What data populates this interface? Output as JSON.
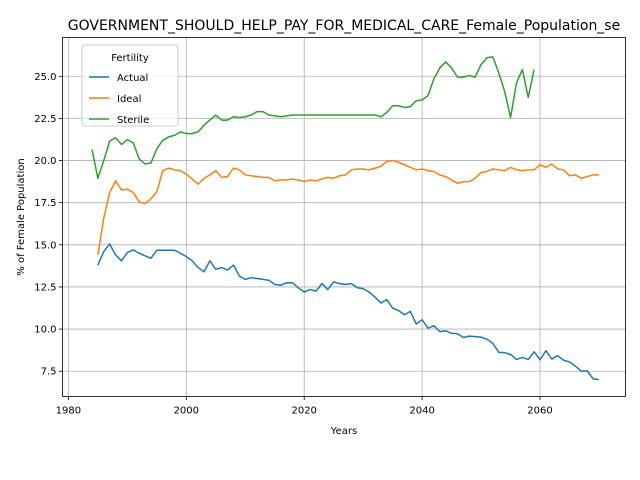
{
  "chart_data": {
    "type": "line",
    "title": "GOVERNMENT_SHOULD_HELP_PAY_FOR_MEDICAL_CARE_Female_Population_se",
    "xlabel": "Years",
    "ylabel": "% of Female Population",
    "xlim": [
      1979,
      2074.5
    ],
    "ylim": [
      6.0,
      27.3
    ],
    "xticks": [
      1980,
      2000,
      2020,
      2040,
      2060
    ],
    "yticks": [
      7.5,
      10.0,
      12.5,
      15.0,
      17.5,
      20.0,
      22.5,
      25.0
    ],
    "xtick_labels": [
      "1980",
      "2000",
      "2020",
      "2040",
      "2060"
    ],
    "ytick_labels": [
      "7.5",
      "10.0",
      "12.5",
      "15.0",
      "17.5",
      "20.0",
      "22.5",
      "25.0"
    ],
    "grid": true,
    "legend": {
      "title": "Fertility",
      "position": "upper-left"
    },
    "series": [
      {
        "name": "Actual",
        "color": "#1f77b4",
        "x": [
          1985,
          1986,
          1987,
          1988,
          1989,
          1990,
          1991,
          1992,
          1993,
          1994,
          1995,
          1996,
          1997,
          1998,
          1999,
          2000,
          2001,
          2002,
          2003,
          2004,
          2005,
          2006,
          2007,
          2008,
          2009,
          2010,
          2011,
          2012,
          2013,
          2014,
          2015,
          2016,
          2017,
          2018,
          2019,
          2020,
          2021,
          2022,
          2023,
          2024,
          2025,
          2026,
          2027,
          2028,
          2029,
          2030,
          2031,
          2032,
          2033,
          2034,
          2035,
          2036,
          2037,
          2038,
          2039,
          2040,
          2041,
          2042,
          2043,
          2044,
          2045,
          2046,
          2047,
          2048,
          2049,
          2050,
          2051,
          2052,
          2053,
          2054,
          2055,
          2056,
          2057,
          2058,
          2059,
          2060,
          2061,
          2062,
          2063,
          2064,
          2065,
          2066,
          2067,
          2068,
          2069,
          2070
        ],
        "y": [
          13.8,
          14.6,
          15.05,
          14.4,
          14.05,
          14.55,
          14.7,
          14.5,
          14.35,
          14.2,
          14.68,
          14.68,
          14.68,
          14.68,
          14.5,
          14.3,
          14.05,
          13.65,
          13.4,
          14.05,
          13.55,
          13.65,
          13.5,
          13.8,
          13.15,
          12.95,
          13.05,
          13.0,
          12.95,
          12.9,
          12.65,
          12.6,
          12.75,
          12.75,
          12.45,
          12.2,
          12.35,
          12.25,
          12.7,
          12.35,
          12.8,
          12.7,
          12.65,
          12.7,
          12.45,
          12.4,
          12.2,
          11.9,
          11.55,
          11.75,
          11.25,
          11.1,
          10.85,
          11.05,
          10.3,
          10.55,
          10.05,
          10.2,
          9.85,
          9.9,
          9.75,
          9.72,
          9.5,
          9.58,
          9.55,
          9.52,
          9.4,
          9.15,
          8.62,
          8.6,
          8.5,
          8.2,
          8.32,
          8.2,
          8.65,
          8.18,
          8.72,
          8.22,
          8.42,
          8.15,
          8.05,
          7.8,
          7.5,
          7.52,
          7.05,
          7.0
        ]
      },
      {
        "name": "Ideal",
        "color": "#ff7f0e",
        "x": [
          1985,
          1986,
          1987,
          1988,
          1989,
          1990,
          1991,
          1992,
          1993,
          1994,
          1995,
          1996,
          1997,
          1998,
          1999,
          2000,
          2001,
          2002,
          2003,
          2004,
          2005,
          2006,
          2007,
          2008,
          2009,
          2010,
          2011,
          2012,
          2013,
          2014,
          2015,
          2016,
          2017,
          2018,
          2019,
          2020,
          2021,
          2022,
          2023,
          2024,
          2025,
          2026,
          2027,
          2028,
          2029,
          2030,
          2031,
          2032,
          2033,
          2034,
          2035,
          2036,
          2037,
          2038,
          2039,
          2040,
          2041,
          2042,
          2043,
          2044,
          2045,
          2046,
          2047,
          2048,
          2049,
          2050,
          2051,
          2052,
          2053,
          2054,
          2055,
          2056,
          2057,
          2058,
          2059,
          2060,
          2061,
          2062,
          2063,
          2064,
          2065,
          2066,
          2067,
          2068,
          2069,
          2070
        ],
        "y": [
          14.4,
          16.6,
          18.1,
          18.8,
          18.25,
          18.3,
          18.1,
          17.55,
          17.45,
          17.75,
          18.15,
          19.4,
          19.55,
          19.45,
          19.4,
          19.2,
          18.9,
          18.6,
          18.95,
          19.15,
          19.4,
          19.0,
          19.05,
          19.55,
          19.45,
          19.15,
          19.1,
          19.05,
          19.0,
          19.0,
          18.8,
          18.85,
          18.85,
          18.9,
          18.85,
          18.75,
          18.85,
          18.8,
          18.9,
          19.0,
          18.95,
          19.1,
          19.15,
          19.45,
          19.5,
          19.5,
          19.45,
          19.55,
          19.65,
          19.95,
          20.0,
          19.9,
          19.75,
          19.6,
          19.45,
          19.5,
          19.4,
          19.35,
          19.15,
          19.05,
          18.85,
          18.65,
          18.75,
          18.75,
          18.95,
          19.3,
          19.35,
          19.5,
          19.45,
          19.4,
          19.6,
          19.45,
          19.4,
          19.45,
          19.45,
          19.75,
          19.6,
          19.8,
          19.5,
          19.45,
          19.1,
          19.15,
          18.95,
          19.05,
          19.15,
          19.15
        ]
      },
      {
        "name": "Sterile",
        "color": "#2ca02c",
        "x": [
          1984,
          1985,
          1986,
          1987,
          1988,
          1989,
          1990,
          1991,
          1992,
          1993,
          1994,
          1995,
          1996,
          1997,
          1998,
          1999,
          2000,
          2001,
          2002,
          2003,
          2004,
          2005,
          2006,
          2007,
          2008,
          2009,
          2010,
          2011,
          2012,
          2013,
          2014,
          2015,
          2016,
          2017,
          2018,
          2019,
          2020,
          2021,
          2022,
          2023,
          2024,
          2025,
          2026,
          2027,
          2028,
          2029,
          2030,
          2031,
          2032,
          2033,
          2034,
          2035,
          2036,
          2037,
          2038,
          2039,
          2040,
          2041,
          2042,
          2043,
          2044,
          2045,
          2046,
          2047,
          2048,
          2049,
          2050,
          2051,
          2052,
          2053,
          2054,
          2055,
          2056,
          2057,
          2058,
          2059
        ],
        "y": [
          20.65,
          18.95,
          20.0,
          21.15,
          21.35,
          20.95,
          21.25,
          21.05,
          20.1,
          19.8,
          19.85,
          20.7,
          21.2,
          21.4,
          21.5,
          21.7,
          21.6,
          21.6,
          21.7,
          22.1,
          22.4,
          22.7,
          22.4,
          22.4,
          22.6,
          22.55,
          22.6,
          22.7,
          22.9,
          22.9,
          22.7,
          22.65,
          22.6,
          22.65,
          22.7,
          22.7,
          22.7,
          22.7,
          22.7,
          22.7,
          22.7,
          22.7,
          22.7,
          22.7,
          22.7,
          22.7,
          22.7,
          22.7,
          22.7,
          22.6,
          22.85,
          23.25,
          23.25,
          23.15,
          23.2,
          23.55,
          23.6,
          23.85,
          24.85,
          25.5,
          25.85,
          25.5,
          24.95,
          24.95,
          25.05,
          24.95,
          25.7,
          26.1,
          26.15,
          25.2,
          24.1,
          22.55,
          24.6,
          25.4,
          23.75,
          25.4
        ]
      }
    ]
  }
}
